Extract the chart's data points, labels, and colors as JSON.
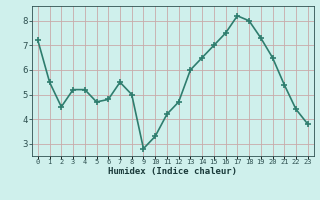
{
  "x": [
    0,
    1,
    2,
    3,
    4,
    5,
    6,
    7,
    8,
    9,
    10,
    11,
    12,
    13,
    14,
    15,
    16,
    17,
    18,
    19,
    20,
    21,
    22,
    23
  ],
  "y": [
    7.2,
    5.5,
    4.5,
    5.2,
    5.2,
    4.7,
    4.8,
    5.5,
    5.0,
    2.8,
    3.3,
    4.2,
    4.7,
    6.0,
    6.5,
    7.0,
    7.5,
    8.2,
    8.0,
    7.3,
    6.5,
    5.4,
    4.4,
    3.8
  ],
  "xlabel": "Humidex (Indice chaleur)",
  "ylim": [
    2.5,
    8.6
  ],
  "xlim": [
    -0.5,
    23.5
  ],
  "yticks": [
    3,
    4,
    5,
    6,
    7,
    8
  ],
  "xtick_labels": [
    "0",
    "1",
    "2",
    "3",
    "4",
    "5",
    "6",
    "7",
    "8",
    "9",
    "10",
    "11",
    "12",
    "13",
    "14",
    "15",
    "16",
    "17",
    "18",
    "19",
    "20",
    "21",
    "22",
    "23"
  ],
  "line_color": "#2e7d6e",
  "marker": "+",
  "marker_size": 5,
  "bg_color": "#cff0ec",
  "grid_color": "#c8aaaa",
  "tick_color": "#2e5050",
  "label_color": "#1a3a3a",
  "line_width": 1.2,
  "grid_linewidth": 0.6
}
